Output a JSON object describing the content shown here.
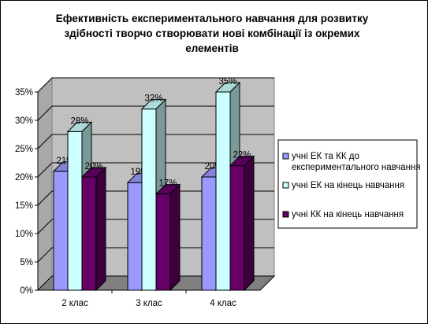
{
  "chart_data": {
    "type": "bar",
    "title_lines": [
      "Ефективність експериментального навчання для розвитку",
      "здібності творчо створювати нові комбінації із окремих",
      "елементів"
    ],
    "categories": [
      "2 клас",
      "3 клас",
      "4 клас"
    ],
    "series": [
      {
        "name": "учні ЕК та КК до експериментального навчання",
        "name_lines": [
          "учні ЕК та КК до",
          "експериментального навчання"
        ],
        "color": "#9999ff",
        "values": [
          21,
          19,
          20
        ]
      },
      {
        "name": "учні ЕК на кінець навчання",
        "name_lines": [
          "учні ЕК на кінець навчання"
        ],
        "color": "#ccffff",
        "values": [
          28,
          32,
          35
        ]
      },
      {
        "name": "учні КК на кінець навчання",
        "name_lines": [
          "учні КК на кінець навчання"
        ],
        "color": "#660066",
        "values": [
          20,
          17,
          22
        ]
      }
    ],
    "data_labels": [
      [
        "21%",
        "19%",
        "20%"
      ],
      [
        "28%",
        "32%",
        "35%"
      ],
      [
        "20%",
        "17%",
        "22%"
      ]
    ],
    "y_ticks": [
      "0%",
      "5%",
      "10%",
      "15%",
      "20%",
      "25%",
      "30%",
      "35%"
    ],
    "ylim": [
      0,
      35
    ],
    "grid": true,
    "legend_position": "right",
    "colors": {
      "wall": "#c0c0c0",
      "floor": "#808080",
      "edge": "#000000"
    }
  }
}
